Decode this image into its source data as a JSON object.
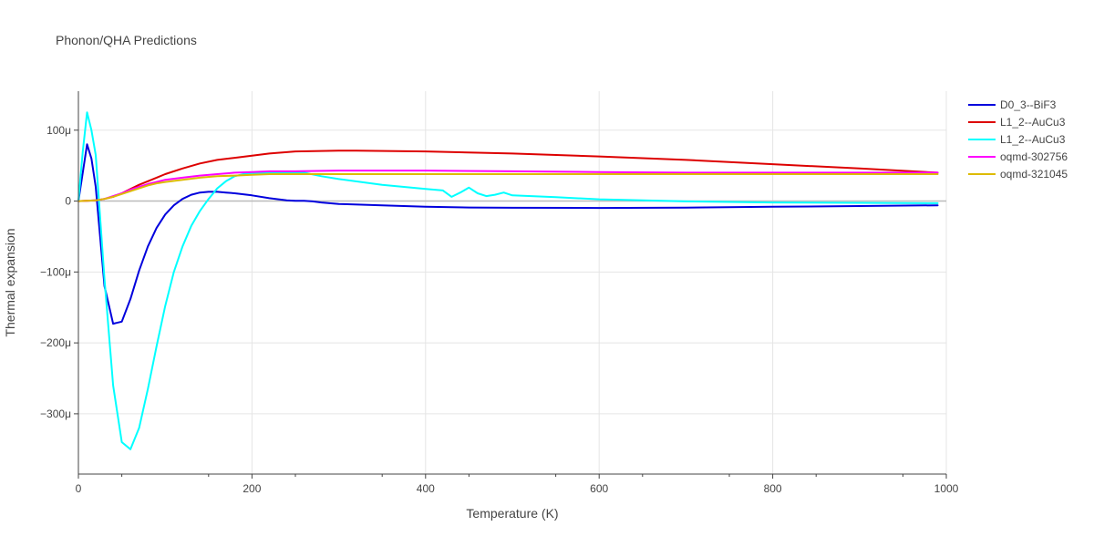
{
  "chart_data": {
    "type": "line",
    "title": "Phonon/QHA Predictions",
    "xlabel": "Temperature (K)",
    "ylabel": "Thermal expansion",
    "xlim": [
      0,
      1000
    ],
    "ylim": [
      -0.000385,
      0.000155
    ],
    "x_ticks": [
      0,
      200,
      400,
      600,
      800,
      1000
    ],
    "x_tick_labels": [
      "0",
      "200",
      "400",
      "600",
      "800",
      "1000"
    ],
    "y_ticks": [
      0.0001,
      0,
      -0.0001,
      -0.0002,
      -0.0003
    ],
    "y_tick_labels": [
      "100μ",
      "0",
      "−100μ",
      "−200μ",
      "−300μ"
    ],
    "grid": true,
    "legend_position": "right",
    "series": [
      {
        "name": "D0_3--BiF3",
        "color": "#0000dd",
        "x": [
          0,
          5,
          10,
          15,
          20,
          30,
          40,
          50,
          60,
          70,
          80,
          90,
          100,
          110,
          120,
          130,
          140,
          150,
          160,
          170,
          180,
          200,
          220,
          240,
          250,
          260,
          270,
          280,
          300,
          350,
          400,
          450,
          500,
          600,
          700,
          800,
          900,
          990
        ],
        "y": [
          0,
          4e-05,
          8e-05,
          6e-05,
          2e-05,
          -0.00012,
          -0.000173,
          -0.00017,
          -0.000138,
          -9.8e-05,
          -6.4e-05,
          -3.8e-05,
          -1.9e-05,
          -6e-06,
          3e-06,
          9e-06,
          1.2e-05,
          1.3e-05,
          1.3e-05,
          1.2e-05,
          1.1e-05,
          8e-06,
          4e-06,
          1e-06,
          3e-07,
          3e-07,
          -5e-07,
          -2e-06,
          -4e-06,
          -6e-06,
          -8e-06,
          -9e-06,
          -9.5e-06,
          -9.7e-06,
          -9.2e-06,
          -8e-06,
          -7e-06,
          -6e-06
        ]
      },
      {
        "name": "L1_2--AuCu3",
        "color": "#dd0000",
        "x": [
          0,
          20,
          30,
          40,
          50,
          60,
          70,
          80,
          90,
          100,
          120,
          140,
          160,
          180,
          200,
          220,
          250,
          300,
          320,
          400,
          500,
          600,
          700,
          800,
          900,
          990
        ],
        "y": [
          0,
          1e-06,
          3e-06,
          6e-06,
          1.1e-05,
          1.7e-05,
          2.3e-05,
          2.8e-05,
          3.3e-05,
          3.8e-05,
          4.6e-05,
          5.3e-05,
          5.8e-05,
          6.1e-05,
          6.4e-05,
          6.7e-05,
          7e-05,
          7.1e-05,
          7.1e-05,
          7e-05,
          6.7e-05,
          6.3e-05,
          5.8e-05,
          5.2e-05,
          4.6e-05,
          4e-05
        ]
      },
      {
        "name": "L1_2--AuCu3",
        "color": "#00ffff",
        "x": [
          0,
          5,
          10,
          15,
          20,
          30,
          40,
          50,
          60,
          70,
          80,
          90,
          100,
          110,
          120,
          130,
          140,
          150,
          160,
          170,
          180,
          190,
          200,
          220,
          250,
          260,
          280,
          300,
          350,
          400,
          420,
          430,
          440,
          450,
          460,
          470,
          480,
          490,
          500,
          550,
          600,
          700,
          800,
          900,
          990
        ],
        "y": [
          0,
          7e-05,
          0.000125,
          0.0001,
          6.5e-05,
          -0.00011,
          -0.00026,
          -0.00034,
          -0.00035,
          -0.00032,
          -0.000265,
          -0.000205,
          -0.000148,
          -0.0001,
          -6.4e-05,
          -3.5e-05,
          -1.4e-05,
          3e-06,
          1.8e-05,
          2.8e-05,
          3.5e-05,
          3.8e-05,
          3.9e-05,
          4e-05,
          4e-05,
          4e-05,
          3.5e-05,
          3.1e-05,
          2.3e-05,
          1.7e-05,
          1.5e-05,
          6e-06,
          1.2e-05,
          1.9e-05,
          1.1e-05,
          7e-06,
          9e-06,
          1.2e-05,
          8e-06,
          5.5e-06,
          2.5e-06,
          -5e-07,
          -2e-06,
          -2.5e-06,
          -3e-06
        ]
      },
      {
        "name": "oqmd-302756",
        "color": "#ff00ff",
        "x": [
          0,
          20,
          30,
          40,
          50,
          60,
          70,
          80,
          90,
          100,
          120,
          140,
          160,
          180,
          200,
          220,
          250,
          300,
          400,
          500,
          600,
          700,
          800,
          900,
          990
        ],
        "y": [
          0,
          1e-06,
          3e-06,
          7e-06,
          1.1e-05,
          1.6e-05,
          2e-05,
          2.4e-05,
          2.7e-05,
          3e-05,
          3.3e-05,
          3.6e-05,
          3.8e-05,
          4e-05,
          4.1e-05,
          4.2e-05,
          4.2e-05,
          4.3e-05,
          4.3e-05,
          4.2e-05,
          4.1e-05,
          4e-05,
          4e-05,
          4e-05,
          4e-05
        ]
      },
      {
        "name": "oqmd-321045",
        "color": "#ddbb00",
        "x": [
          0,
          20,
          30,
          40,
          50,
          60,
          70,
          80,
          90,
          100,
          120,
          140,
          160,
          180,
          200,
          220,
          250,
          300,
          400,
          500,
          600,
          700,
          800,
          900,
          990
        ],
        "y": [
          0,
          1e-06,
          3e-06,
          6e-06,
          1e-05,
          1.4e-05,
          1.8e-05,
          2.2e-05,
          2.5e-05,
          2.7e-05,
          3e-05,
          3.3e-05,
          3.5e-05,
          3.6e-05,
          3.7e-05,
          3.8e-05,
          3.8e-05,
          3.8e-05,
          3.8e-05,
          3.8e-05,
          3.8e-05,
          3.8e-05,
          3.8e-05,
          3.8e-05,
          3.8e-05
        ]
      }
    ]
  }
}
